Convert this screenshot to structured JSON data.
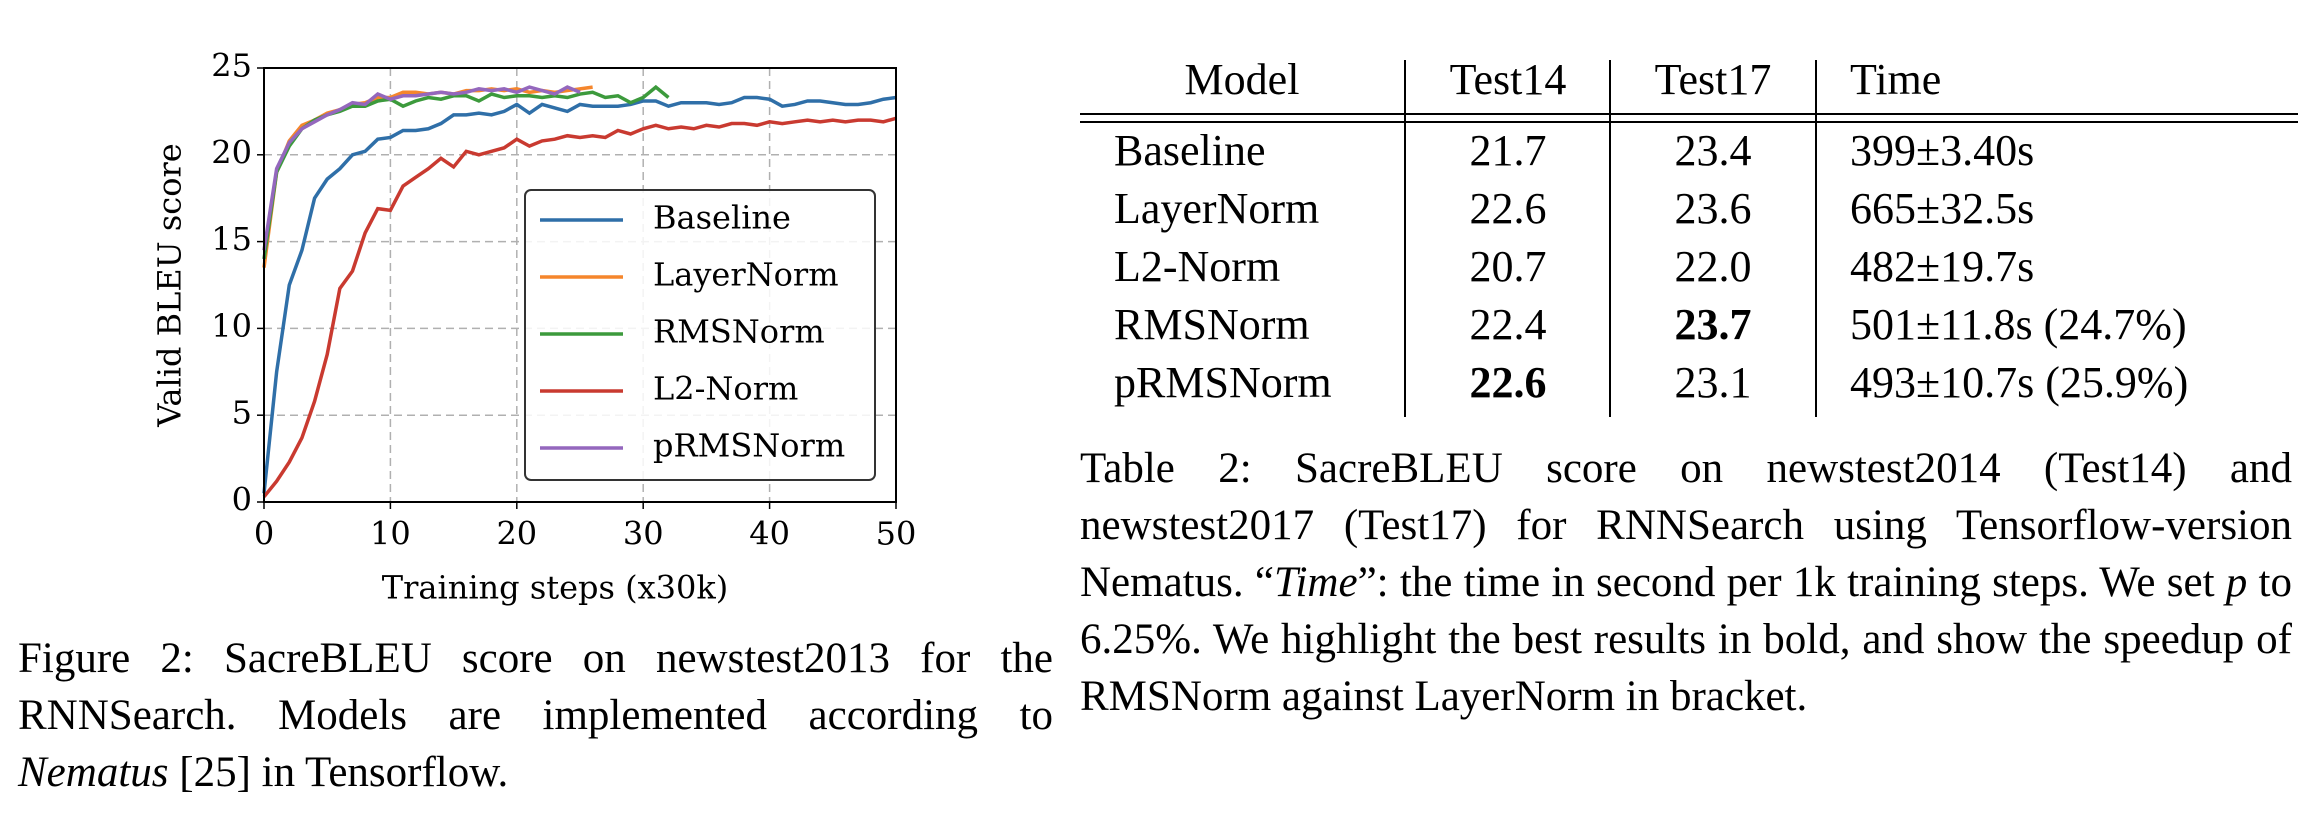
{
  "chart_data": {
    "type": "line",
    "xlabel": "Training steps (x30k)",
    "ylabel": "Valid BLEU score",
    "x": [
      0,
      1,
      2,
      3,
      4,
      5,
      6,
      7,
      8,
      9,
      10,
      11,
      12,
      13,
      14,
      15,
      16,
      17,
      18,
      19,
      20,
      21,
      22,
      23,
      24,
      25,
      26,
      27,
      28,
      29,
      30,
      31,
      32,
      33,
      34,
      35,
      36,
      37,
      38,
      39,
      40,
      41,
      42,
      43,
      44,
      45,
      46,
      47,
      48,
      49,
      50
    ],
    "series": [
      {
        "name": "Baseline",
        "color": "#2f6fa8",
        "values": [
          0.5,
          7.5,
          12.5,
          14.5,
          17.5,
          18.6,
          19.2,
          20.0,
          20.2,
          20.9,
          21.0,
          21.4,
          21.4,
          21.5,
          21.8,
          22.3,
          22.3,
          22.4,
          22.3,
          22.5,
          22.9,
          22.4,
          22.9,
          22.7,
          22.5,
          22.9,
          22.8,
          22.8,
          22.8,
          22.9,
          23.1,
          23.1,
          22.8,
          23.0,
          23.0,
          23.0,
          22.9,
          23.0,
          23.3,
          23.3,
          23.2,
          22.8,
          22.9,
          23.1,
          23.1,
          23.0,
          22.9,
          22.9,
          23.0,
          23.2,
          23.3
        ]
      },
      {
        "name": "LayerNorm",
        "color": "#f5862c",
        "values": [
          13.5,
          19.0,
          20.8,
          21.7,
          22.0,
          22.4,
          22.6,
          22.9,
          23.0,
          23.3,
          23.3,
          23.6,
          23.6,
          23.5,
          23.6,
          23.5,
          23.7,
          23.7,
          23.8,
          23.7,
          23.8,
          23.6,
          23.7,
          23.6,
          23.7,
          23.8,
          23.9,
          null,
          null,
          null,
          null,
          null,
          null,
          null,
          null,
          null,
          null,
          null,
          null,
          null,
          null,
          null,
          null,
          null,
          null,
          null,
          null,
          null,
          null,
          null,
          null
        ]
      },
      {
        "name": "RMSNorm",
        "color": "#3c9a3c",
        "values": [
          14.0,
          19.0,
          20.5,
          21.5,
          22.0,
          22.3,
          22.5,
          22.8,
          22.8,
          23.1,
          23.2,
          22.8,
          23.1,
          23.3,
          23.2,
          23.4,
          23.4,
          23.1,
          23.5,
          23.3,
          23.4,
          23.4,
          23.3,
          23.4,
          23.3,
          23.5,
          23.6,
          23.3,
          23.4,
          23.0,
          23.3,
          23.9,
          23.3,
          null,
          null,
          null,
          null,
          null,
          null,
          null,
          null,
          null,
          null,
          null,
          null,
          null,
          null,
          null,
          null,
          null,
          null
        ]
      },
      {
        "name": "L2-Norm",
        "color": "#c93a30",
        "values": [
          0.3,
          1.2,
          2.3,
          3.7,
          5.8,
          8.5,
          12.3,
          13.3,
          15.5,
          16.9,
          16.8,
          18.2,
          18.7,
          19.2,
          19.8,
          19.3,
          20.2,
          20.0,
          20.2,
          20.4,
          20.9,
          20.5,
          20.8,
          20.9,
          21.1,
          21.0,
          21.1,
          21.0,
          21.4,
          21.2,
          21.5,
          21.7,
          21.5,
          21.6,
          21.5,
          21.7,
          21.6,
          21.8,
          21.8,
          21.7,
          21.9,
          21.8,
          21.9,
          22.0,
          21.9,
          22.0,
          21.9,
          22.0,
          22.0,
          21.9,
          22.1
        ]
      },
      {
        "name": "pRMSNorm",
        "color": "#9467bd",
        "values": [
          14.5,
          19.2,
          20.7,
          21.5,
          21.9,
          22.3,
          22.6,
          23.0,
          22.9,
          23.5,
          23.2,
          23.4,
          23.4,
          23.5,
          23.6,
          23.5,
          23.6,
          23.8,
          23.7,
          23.8,
          23.6,
          23.9,
          23.7,
          23.5,
          23.9,
          23.6,
          null,
          null,
          null,
          null,
          null,
          null,
          null,
          null,
          null,
          null,
          null,
          null,
          null,
          null,
          null,
          null,
          null,
          null,
          null,
          null,
          null,
          null,
          null,
          null,
          null
        ]
      }
    ],
    "xlim": [
      0,
      50
    ],
    "ylim": [
      0,
      25
    ],
    "xticks": [
      0,
      10,
      20,
      30,
      40,
      50
    ],
    "yticks": [
      0,
      5,
      10,
      15,
      20,
      25
    ],
    "grid": true,
    "legend": "center right"
  },
  "figure_caption": [
    "Figure 2:  SacreBLEU score on newstest2013 for the RNNSearch. Models are implemented according to ",
    "Nematus",
    " [25] in Tensorflow."
  ],
  "table": {
    "header": [
      "Model",
      "Test14",
      "Test17",
      "Time"
    ],
    "rows": [
      [
        "Baseline",
        "21.7",
        "23.4",
        "399±3.40s"
      ],
      [
        "LayerNorm",
        "22.6",
        "23.6",
        "665±32.5s"
      ],
      [
        "L2-Norm",
        "20.7",
        "22.0",
        "482±19.7s"
      ],
      [
        "RMSNorm",
        "22.4",
        "23.7",
        "501±11.8s (24.7%)"
      ],
      [
        "pRMSNorm",
        "22.6",
        "23.1",
        "493±10.7s (25.9%)"
      ]
    ]
  },
  "table_caption": [
    "Table 2:  SacreBLEU score on newstest2014 (Test14) and newstest2017 (Test17) for RNNSearch using Tensorflow-version Nematus. “",
    "Time",
    "”: the time in second per 1k training steps. We set ",
    "p",
    " to 6.25%. We highlight the best results in bold, and show the speedup of RMSNorm against LayerNorm in bracket."
  ]
}
